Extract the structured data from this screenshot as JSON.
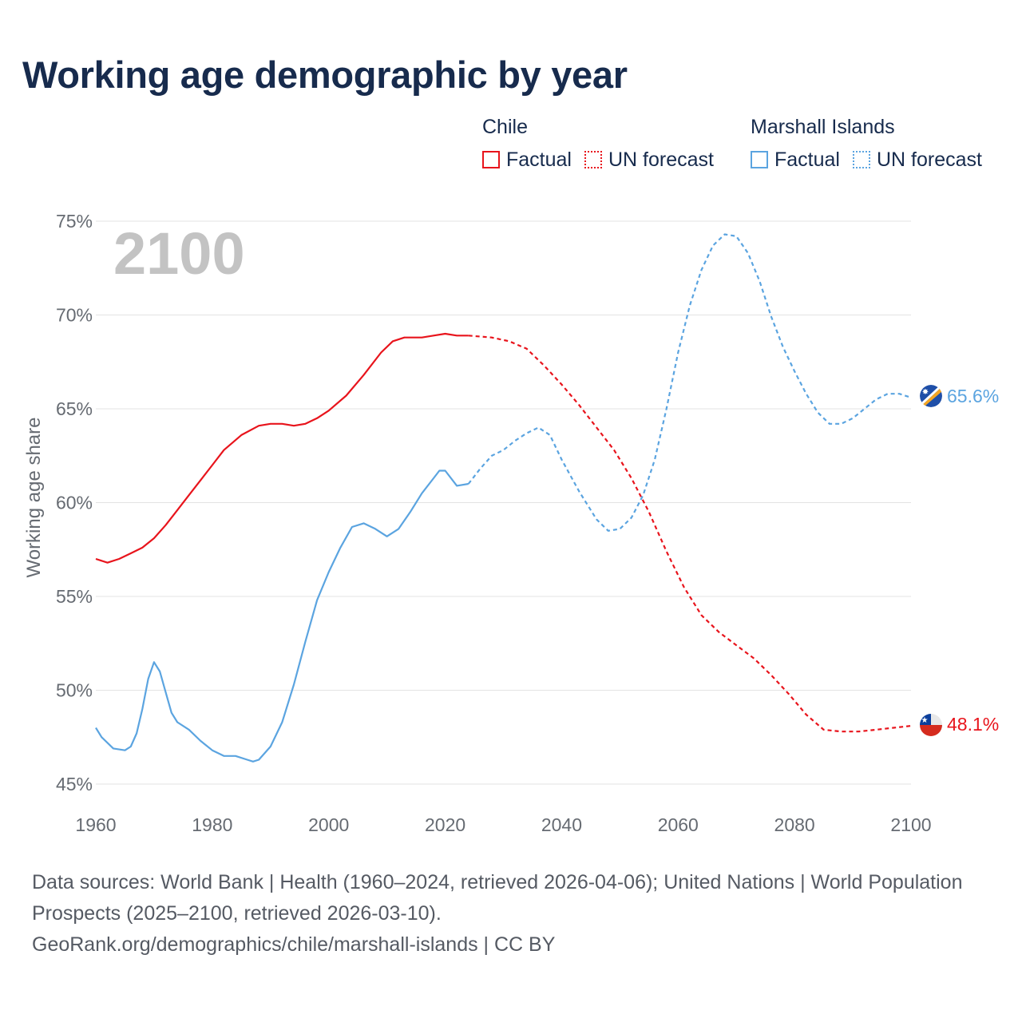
{
  "title": "Working age demographic by year",
  "legend": [
    {
      "group": "Chile",
      "color": "#e8141c",
      "factual_label": "Factual",
      "forecast_label": "UN forecast"
    },
    {
      "group": "Marshall Islands",
      "color": "#5ba4e0",
      "factual_label": "Factual",
      "forecast_label": "UN forecast"
    }
  ],
  "footer": {
    "sources": "Data sources: World Bank | Health (1960–2024, retrieved 2026-04-06); United Nations | World Population Prospects (2025–2100, retrieved 2026-03-10).",
    "credit": "GeoRank.org/demographics/chile/marshall-islands | CC BY"
  },
  "chart_data": {
    "type": "line",
    "title": "Working age demographic by year",
    "xlabel": "",
    "ylabel": "Working age share",
    "xlim": [
      1960,
      2100
    ],
    "ylim": [
      45,
      75
    ],
    "x_ticks": [
      1960,
      1980,
      2000,
      2020,
      2040,
      2060,
      2080,
      2100
    ],
    "y_ticks": [
      45,
      50,
      55,
      60,
      65,
      70,
      75
    ],
    "y_tick_labels": [
      "45%",
      "50%",
      "55%",
      "60%",
      "65%",
      "70%",
      "75%"
    ],
    "x_tick_labels": [
      "1960",
      "1980",
      "2000",
      "2020",
      "2040",
      "2060",
      "2080",
      "2100"
    ],
    "year_watermark": "2100",
    "forecast_start_year": 2024,
    "grid": true,
    "series": [
      {
        "name": "Chile",
        "color": "#e8141c",
        "end_label": "48.1%",
        "flag_icon": "chile-flag-icon",
        "points": [
          [
            1960,
            57.0
          ],
          [
            1962,
            56.8
          ],
          [
            1964,
            57.0
          ],
          [
            1966,
            57.3
          ],
          [
            1968,
            57.6
          ],
          [
            1970,
            58.1
          ],
          [
            1972,
            58.8
          ],
          [
            1974,
            59.6
          ],
          [
            1976,
            60.4
          ],
          [
            1978,
            61.2
          ],
          [
            1980,
            62.0
          ],
          [
            1982,
            62.8
          ],
          [
            1985,
            63.6
          ],
          [
            1988,
            64.1
          ],
          [
            1990,
            64.2
          ],
          [
            1992,
            64.2
          ],
          [
            1994,
            64.1
          ],
          [
            1996,
            64.2
          ],
          [
            1998,
            64.5
          ],
          [
            2000,
            64.9
          ],
          [
            2003,
            65.7
          ],
          [
            2006,
            66.8
          ],
          [
            2009,
            68.0
          ],
          [
            2011,
            68.6
          ],
          [
            2013,
            68.8
          ],
          [
            2016,
            68.8
          ],
          [
            2018,
            68.9
          ],
          [
            2020,
            69.0
          ],
          [
            2022,
            68.9
          ],
          [
            2024,
            68.9
          ],
          [
            2028,
            68.8
          ],
          [
            2031,
            68.6
          ],
          [
            2034,
            68.2
          ],
          [
            2037,
            67.3
          ],
          [
            2040,
            66.3
          ],
          [
            2043,
            65.2
          ],
          [
            2046,
            64.0
          ],
          [
            2049,
            62.8
          ],
          [
            2052,
            61.3
          ],
          [
            2055,
            59.5
          ],
          [
            2058,
            57.4
          ],
          [
            2061,
            55.5
          ],
          [
            2064,
            54.0
          ],
          [
            2067,
            53.1
          ],
          [
            2070,
            52.4
          ],
          [
            2073,
            51.7
          ],
          [
            2076,
            50.8
          ],
          [
            2079,
            49.8
          ],
          [
            2082,
            48.7
          ],
          [
            2085,
            47.9
          ],
          [
            2088,
            47.8
          ],
          [
            2091,
            47.8
          ],
          [
            2094,
            47.9
          ],
          [
            2097,
            48.0
          ],
          [
            2100,
            48.1
          ]
        ]
      },
      {
        "name": "Marshall Islands",
        "color": "#5ba4e0",
        "end_label": "65.6%",
        "flag_icon": "marshall-islands-flag-icon",
        "points": [
          [
            1960,
            48.0
          ],
          [
            1961,
            47.5
          ],
          [
            1963,
            46.9
          ],
          [
            1965,
            46.8
          ],
          [
            1966,
            47.0
          ],
          [
            1967,
            47.7
          ],
          [
            1968,
            49.0
          ],
          [
            1969,
            50.6
          ],
          [
            1970,
            51.5
          ],
          [
            1971,
            51.0
          ],
          [
            1972,
            49.9
          ],
          [
            1973,
            48.8
          ],
          [
            1974,
            48.3
          ],
          [
            1976,
            47.9
          ],
          [
            1978,
            47.3
          ],
          [
            1980,
            46.8
          ],
          [
            1982,
            46.5
          ],
          [
            1984,
            46.5
          ],
          [
            1986,
            46.3
          ],
          [
            1987,
            46.2
          ],
          [
            1988,
            46.3
          ],
          [
            1990,
            47.0
          ],
          [
            1992,
            48.3
          ],
          [
            1994,
            50.3
          ],
          [
            1996,
            52.6
          ],
          [
            1998,
            54.8
          ],
          [
            2000,
            56.3
          ],
          [
            2002,
            57.6
          ],
          [
            2004,
            58.7
          ],
          [
            2006,
            58.9
          ],
          [
            2008,
            58.6
          ],
          [
            2010,
            58.2
          ],
          [
            2012,
            58.6
          ],
          [
            2014,
            59.5
          ],
          [
            2016,
            60.5
          ],
          [
            2018,
            61.3
          ],
          [
            2019,
            61.7
          ],
          [
            2020,
            61.7
          ],
          [
            2022,
            60.9
          ],
          [
            2024,
            61.0
          ],
          [
            2026,
            61.8
          ],
          [
            2028,
            62.5
          ],
          [
            2030,
            62.8
          ],
          [
            2032,
            63.3
          ],
          [
            2034,
            63.7
          ],
          [
            2036,
            64.0
          ],
          [
            2038,
            63.6
          ],
          [
            2040,
            62.3
          ],
          [
            2043,
            60.6
          ],
          [
            2046,
            59.1
          ],
          [
            2048,
            58.5
          ],
          [
            2050,
            58.6
          ],
          [
            2052,
            59.2
          ],
          [
            2054,
            60.4
          ],
          [
            2056,
            62.3
          ],
          [
            2058,
            65.0
          ],
          [
            2060,
            68.0
          ],
          [
            2062,
            70.5
          ],
          [
            2064,
            72.4
          ],
          [
            2066,
            73.7
          ],
          [
            2068,
            74.3
          ],
          [
            2070,
            74.2
          ],
          [
            2072,
            73.3
          ],
          [
            2074,
            71.8
          ],
          [
            2076,
            69.9
          ],
          [
            2078,
            68.3
          ],
          [
            2080,
            67.0
          ],
          [
            2082,
            65.8
          ],
          [
            2084,
            64.8
          ],
          [
            2086,
            64.2
          ],
          [
            2088,
            64.2
          ],
          [
            2090,
            64.5
          ],
          [
            2092,
            65.0
          ],
          [
            2094,
            65.5
          ],
          [
            2096,
            65.8
          ],
          [
            2098,
            65.8
          ],
          [
            2100,
            65.6
          ]
        ]
      }
    ]
  }
}
